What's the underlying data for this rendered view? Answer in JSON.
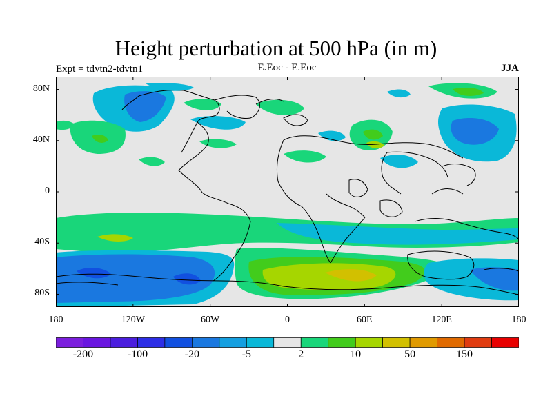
{
  "title": "Height perturbation at 500 hPa (in m)",
  "subtitle_left": "Expt = tdvtn2-tdvtn1",
  "subtitle_center": "E.Eoc - E.Eoc",
  "subtitle_right": "JJA",
  "y_axis": {
    "ticks": [
      "80N",
      "40N",
      "0",
      "40S",
      "80S"
    ],
    "lat_values": [
      80,
      40,
      0,
      -40,
      -80
    ]
  },
  "x_axis": {
    "ticks": [
      "180",
      "120W",
      "60W",
      "0",
      "60E",
      "120E",
      "180"
    ],
    "lon_values": [
      -180,
      -120,
      -60,
      0,
      60,
      120,
      180
    ]
  },
  "lat_range": [
    -90,
    90
  ],
  "lon_range": [
    -180,
    180
  ],
  "colorbar": {
    "colors": [
      "#7b1fdd",
      "#6a16e0",
      "#4b1ede",
      "#2d2ee6",
      "#1150e0",
      "#1a78e0",
      "#159fe0",
      "#0ab8d8",
      "#e6e6e6",
      "#19d67a",
      "#42cc1c",
      "#a6d600",
      "#d2c000",
      "#e09a00",
      "#e06a00",
      "#e03c10",
      "#e80000"
    ],
    "labels": [
      "-200",
      "-100",
      "-20",
      "-5",
      "2",
      "10",
      "50",
      "150"
    ],
    "label_boundaries": [
      1,
      3,
      5,
      7,
      9,
      11,
      13,
      15
    ]
  },
  "colors": {
    "background": "#e6e6e6",
    "coast": "#000000"
  }
}
